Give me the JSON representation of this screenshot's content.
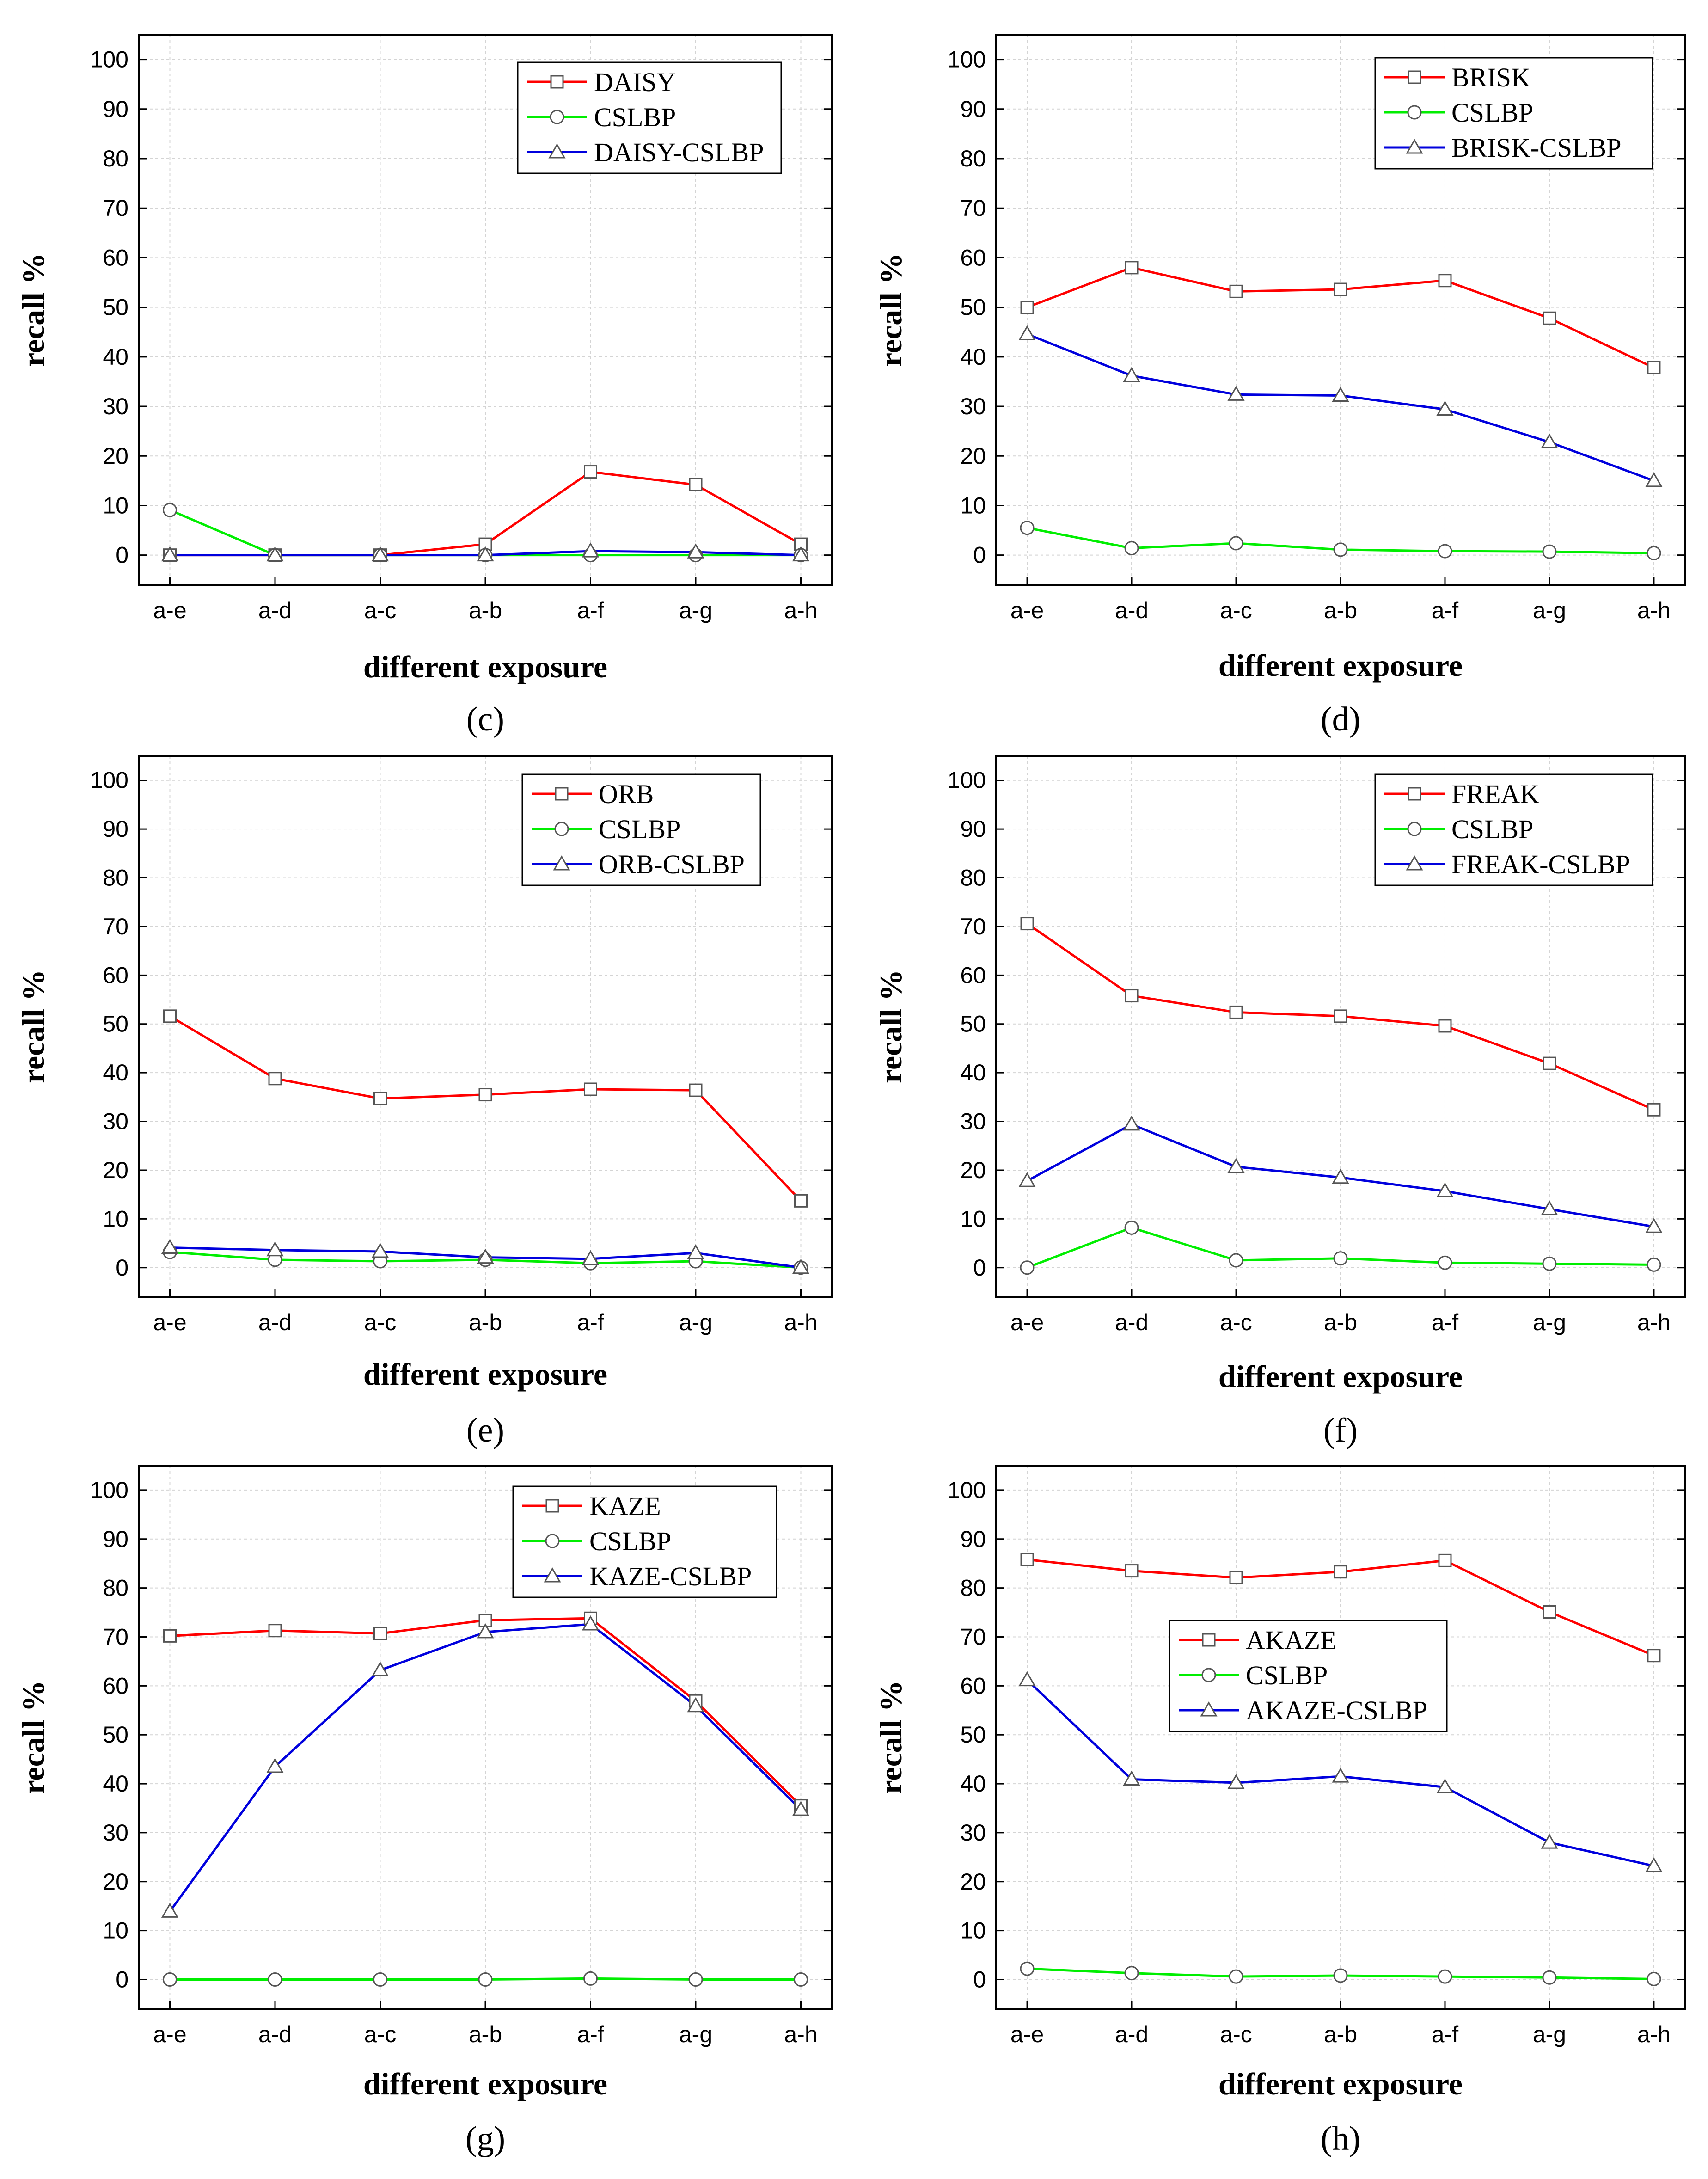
{
  "colors": {
    "series1": "#ff0000",
    "series2": "#00ee00",
    "series3": "#0000dd",
    "grid": "#d4d4d4",
    "axis": "#000000"
  },
  "chart_data": [
    {
      "type": "line",
      "panel_label": "(c)",
      "xlabel": "different exposure",
      "ylabel": "recall %",
      "ylim": [
        -6,
        105
      ],
      "yticks": [
        0,
        10,
        20,
        30,
        40,
        50,
        60,
        70,
        80,
        90,
        100
      ],
      "categories": [
        "a-e",
        "a-d",
        "a-c",
        "a-b",
        "a-f",
        "a-g",
        "a-h"
      ],
      "legend_position": "top-right",
      "series": [
        {
          "name": "DAISY",
          "marker": "square",
          "values": [
            0,
            0,
            0,
            2.2,
            16.8,
            14.2,
            2.2
          ]
        },
        {
          "name": "CSLBP",
          "marker": "circle",
          "values": [
            9.1,
            0,
            0,
            0,
            0,
            0,
            0
          ]
        },
        {
          "name": "DAISY-CSLBP",
          "marker": "triangle",
          "values": [
            0,
            0,
            0,
            0,
            0.8,
            0.6,
            0
          ]
        }
      ]
    },
    {
      "type": "line",
      "panel_label": "(d)",
      "xlabel": "different exposure",
      "ylabel": "recall %",
      "ylim": [
        -6,
        105
      ],
      "yticks": [
        0,
        10,
        20,
        30,
        40,
        50,
        60,
        70,
        80,
        90,
        100
      ],
      "categories": [
        "a-e",
        "a-d",
        "a-c",
        "a-b",
        "a-f",
        "a-g",
        "a-h"
      ],
      "legend_position": "top-right",
      "series": [
        {
          "name": "BRISK",
          "marker": "square",
          "values": [
            50,
            58,
            53.2,
            53.6,
            55.4,
            47.8,
            37.8
          ]
        },
        {
          "name": "CSLBP",
          "marker": "circle",
          "values": [
            5.5,
            1.4,
            2.4,
            1.1,
            0.8,
            0.7,
            0.4
          ]
        },
        {
          "name": "BRISK-CSLBP",
          "marker": "triangle",
          "values": [
            44.6,
            36.2,
            32.4,
            32.2,
            29.4,
            22.8,
            15
          ]
        }
      ]
    },
    {
      "type": "line",
      "panel_label": "(e)",
      "xlabel": "different exposure",
      "ylabel": "recall %",
      "ylim": [
        -6,
        105
      ],
      "yticks": [
        0,
        10,
        20,
        30,
        40,
        50,
        60,
        70,
        80,
        90,
        100
      ],
      "categories": [
        "a-e",
        "a-d",
        "a-c",
        "a-b",
        "a-f",
        "a-g",
        "a-h"
      ],
      "legend_position": "top-right",
      "series": [
        {
          "name": "ORB",
          "marker": "square",
          "values": [
            51.6,
            38.8,
            34.7,
            35.5,
            36.6,
            36.4,
            13.7
          ]
        },
        {
          "name": "CSLBP",
          "marker": "circle",
          "values": [
            3.2,
            1.6,
            1.3,
            1.6,
            0.9,
            1.3,
            0
          ]
        },
        {
          "name": "ORB-CSLBP",
          "marker": "triangle",
          "values": [
            4.1,
            3.6,
            3.3,
            2.1,
            1.8,
            3,
            0
          ]
        }
      ]
    },
    {
      "type": "line",
      "panel_label": "(f)",
      "xlabel": "different exposure",
      "ylabel": "recall %",
      "ylim": [
        -6,
        105
      ],
      "yticks": [
        0,
        10,
        20,
        30,
        40,
        50,
        60,
        70,
        80,
        90,
        100
      ],
      "categories": [
        "a-e",
        "a-d",
        "a-c",
        "a-b",
        "a-f",
        "a-g",
        "a-h"
      ],
      "legend_position": "top-right",
      "series": [
        {
          "name": "FREAK",
          "marker": "square",
          "values": [
            70.6,
            55.8,
            52.4,
            51.6,
            49.6,
            41.9,
            32.4
          ]
        },
        {
          "name": "CSLBP",
          "marker": "circle",
          "values": [
            0,
            8.2,
            1.5,
            1.9,
            1,
            0.8,
            0.6
          ]
        },
        {
          "name": "FREAK-CSLBP",
          "marker": "triangle",
          "values": [
            17.8,
            29.4,
            20.7,
            18.5,
            15.7,
            12,
            8.4
          ]
        }
      ]
    },
    {
      "type": "line",
      "panel_label": "(g)",
      "xlabel": "different exposure",
      "ylabel": "recall %",
      "ylim": [
        -6,
        105
      ],
      "yticks": [
        0,
        10,
        20,
        30,
        40,
        50,
        60,
        70,
        80,
        90,
        100
      ],
      "categories": [
        "a-e",
        "a-d",
        "a-c",
        "a-b",
        "a-f",
        "a-g",
        "a-h"
      ],
      "legend_position": "top-right",
      "series": [
        {
          "name": "KAZE",
          "marker": "square",
          "values": [
            70.2,
            71.3,
            70.7,
            73.4,
            73.8,
            56.9,
            35.5
          ]
        },
        {
          "name": "CSLBP",
          "marker": "circle",
          "values": [
            0,
            0,
            0,
            0,
            0.2,
            0,
            0
          ]
        },
        {
          "name": "KAZE-CSLBP",
          "marker": "triangle",
          "values": [
            13.9,
            43.5,
            63.2,
            71,
            72.6,
            55.9,
            34.7
          ]
        }
      ]
    },
    {
      "type": "line",
      "panel_label": "(h)",
      "xlabel": "different exposure",
      "ylabel": "recall %",
      "ylim": [
        -6,
        105
      ],
      "yticks": [
        0,
        10,
        20,
        30,
        40,
        50,
        60,
        70,
        80,
        90,
        100
      ],
      "categories": [
        "a-e",
        "a-d",
        "a-c",
        "a-b",
        "a-f",
        "a-g",
        "a-h"
      ],
      "legend_position": "center",
      "series": [
        {
          "name": "AKAZE",
          "marker": "square",
          "values": [
            85.8,
            83.5,
            82.1,
            83.3,
            85.6,
            75.1,
            66.2
          ]
        },
        {
          "name": "CSLBP",
          "marker": "circle",
          "values": [
            2.2,
            1.3,
            0.6,
            0.8,
            0.6,
            0.4,
            0.1
          ]
        },
        {
          "name": "AKAZE-CSLBP",
          "marker": "triangle",
          "values": [
            61.2,
            40.9,
            40.2,
            41.5,
            39.3,
            28,
            23.2
          ]
        }
      ]
    }
  ]
}
